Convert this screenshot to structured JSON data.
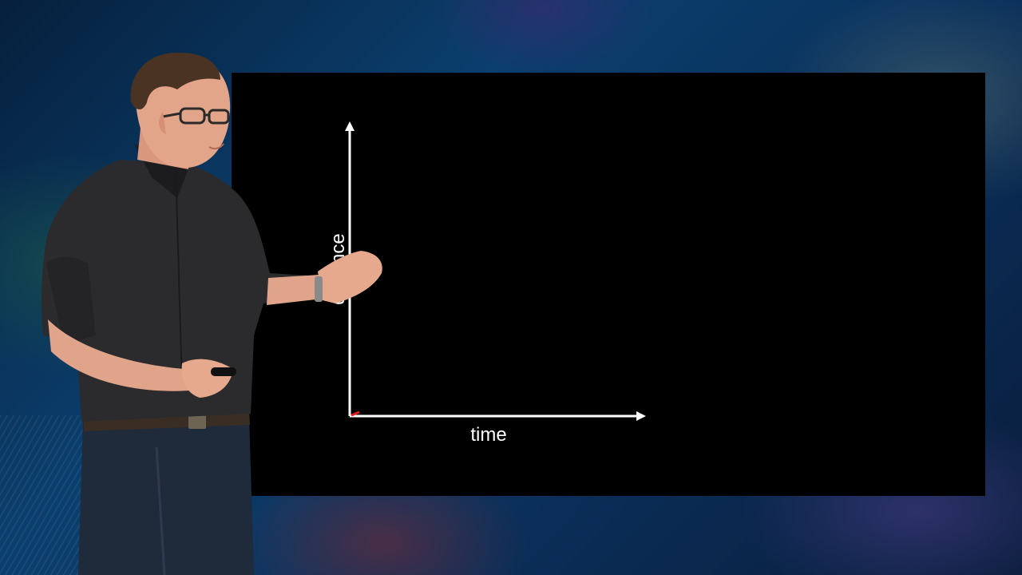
{
  "slide": {
    "background": "#000000",
    "x_axis_label": "time",
    "y_axis_label": "distance",
    "axis_color": "#ffffff",
    "origin_marker_color": "#e31b1b"
  },
  "scene": {
    "backdrop_colors": [
      "#0b3f6e",
      "#06203d",
      "#4a3c82"
    ],
    "presenter": {
      "shirt_color": "#2b2b2d",
      "jeans_color": "#1f2a3a",
      "holding": "clicker-remote"
    }
  }
}
